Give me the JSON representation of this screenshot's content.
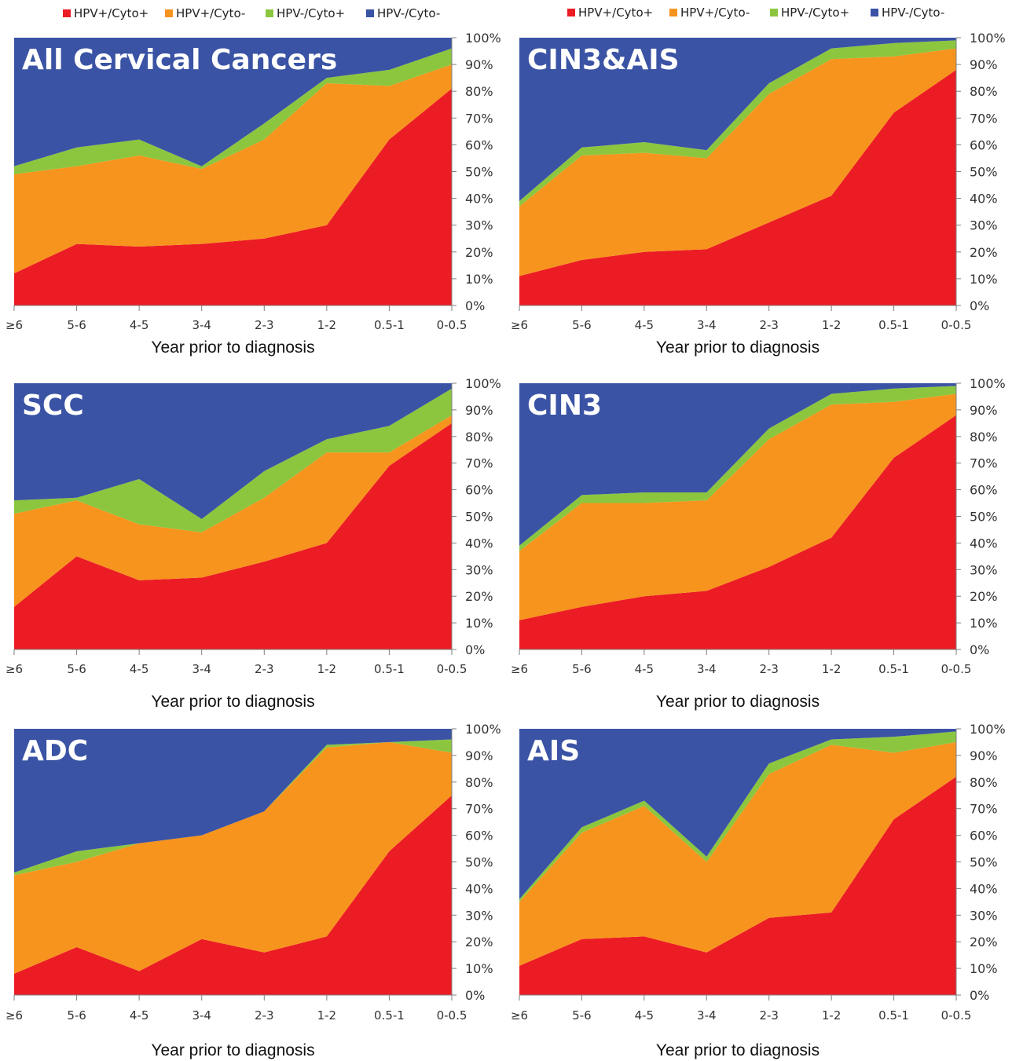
{
  "legend_labels": [
    "HPV+/Cyto+",
    "HPV+/Cyto-",
    "HPV-/Cyto+",
    "HPV-/Cyto-"
  ],
  "colors": {
    "HPV+/Cyto+": "#ec1c24",
    "HPV+/Cyto-": "#f7941d",
    "HPV-/Cyto+": "#8cc63f",
    "HPV-/Cyto-": "#3a53a4"
  },
  "chart_data": [
    {
      "type": "area",
      "stacked": true,
      "title": "All Cervical Cancers",
      "xlabel": "Year prior to diagnosis",
      "categories": [
        "≥6",
        "5-6",
        "4-5",
        "3-4",
        "2-3",
        "1-2",
        "0.5-1",
        "0-0.5"
      ],
      "yticks": [
        "0%",
        "10%",
        "20%",
        "30%",
        "40%",
        "50%",
        "60%",
        "70%",
        "80%",
        "90%",
        "100%"
      ],
      "ylim": [
        0,
        100
      ],
      "series": [
        {
          "name": "HPV+/Cyto+",
          "values": [
            12,
            23,
            22,
            23,
            25,
            30,
            62,
            81
          ]
        },
        {
          "name": "HPV+/Cyto-",
          "values": [
            37,
            29,
            34,
            28,
            37,
            53,
            20,
            9
          ]
        },
        {
          "name": "HPV-/Cyto+",
          "values": [
            3,
            7,
            6,
            1,
            6,
            2,
            6,
            6
          ]
        },
        {
          "name": "HPV-/Cyto-",
          "values": [
            48,
            41,
            38,
            48,
            32,
            15,
            12,
            4
          ]
        }
      ]
    },
    {
      "type": "area",
      "stacked": true,
      "title": "CIN3&AIS",
      "xlabel": "Year prior to diagnosis",
      "categories": [
        "≥6",
        "5-6",
        "4-5",
        "3-4",
        "2-3",
        "1-2",
        "0.5-1",
        "0-0.5"
      ],
      "yticks": [
        "0%",
        "10%",
        "20%",
        "30%",
        "40%",
        "50%",
        "60%",
        "70%",
        "80%",
        "90%",
        "100%"
      ],
      "ylim": [
        0,
        100
      ],
      "series": [
        {
          "name": "HPV+/Cyto+",
          "values": [
            11,
            17,
            20,
            21,
            31,
            41,
            72,
            88
          ]
        },
        {
          "name": "HPV+/Cyto-",
          "values": [
            26,
            39,
            37,
            34,
            48,
            51,
            21,
            8
          ]
        },
        {
          "name": "HPV-/Cyto+",
          "values": [
            2,
            3,
            4,
            3,
            4,
            4,
            5,
            3
          ]
        },
        {
          "name": "HPV-/Cyto-",
          "values": [
            61,
            41,
            39,
            42,
            17,
            4,
            2,
            1
          ]
        }
      ]
    },
    {
      "type": "area",
      "stacked": true,
      "title": "SCC",
      "xlabel": "Year prior to diagnosis",
      "categories": [
        "≥6",
        "5-6",
        "4-5",
        "3-4",
        "2-3",
        "1-2",
        "0.5-1",
        "0-0.5"
      ],
      "yticks": [
        "0%",
        "10%",
        "20%",
        "30%",
        "40%",
        "50%",
        "60%",
        "70%",
        "80%",
        "90%",
        "100%"
      ],
      "ylim": [
        0,
        100
      ],
      "series": [
        {
          "name": "HPV+/Cyto+",
          "values": [
            16,
            35,
            26,
            27,
            33,
            40,
            69,
            85
          ]
        },
        {
          "name": "HPV+/Cyto-",
          "values": [
            35,
            21,
            21,
            17,
            24,
            34,
            5,
            3
          ]
        },
        {
          "name": "HPV-/Cyto+",
          "values": [
            5,
            1,
            17,
            5,
            10,
            5,
            10,
            10
          ]
        },
        {
          "name": "HPV-/Cyto-",
          "values": [
            44,
            43,
            36,
            51,
            33,
            21,
            16,
            2
          ]
        }
      ]
    },
    {
      "type": "area",
      "stacked": true,
      "title": "CIN3",
      "xlabel": "Year prior to diagnosis",
      "categories": [
        "≥6",
        "5-6",
        "4-5",
        "3-4",
        "2-3",
        "1-2",
        "0.5-1",
        "0-0.5"
      ],
      "yticks": [
        "0%",
        "10%",
        "20%",
        "30%",
        "40%",
        "50%",
        "60%",
        "70%",
        "80%",
        "90%",
        "100%"
      ],
      "ylim": [
        0,
        100
      ],
      "series": [
        {
          "name": "HPV+/Cyto+",
          "values": [
            11,
            16,
            20,
            22,
            31,
            42,
            72,
            88
          ]
        },
        {
          "name": "HPV+/Cyto-",
          "values": [
            26,
            39,
            35,
            34,
            48,
            50,
            21,
            8
          ]
        },
        {
          "name": "HPV-/Cyto+",
          "values": [
            2,
            3,
            4,
            3,
            4,
            4,
            5,
            3
          ]
        },
        {
          "name": "HPV-/Cyto-",
          "values": [
            61,
            42,
            41,
            41,
            17,
            4,
            2,
            1
          ]
        }
      ]
    },
    {
      "type": "area",
      "stacked": true,
      "title": "ADC",
      "xlabel": "Year prior to diagnosis",
      "categories": [
        "≥6",
        "5-6",
        "4-5",
        "3-4",
        "2-3",
        "1-2",
        "0.5-1",
        "0-0.5"
      ],
      "yticks": [
        "0%",
        "10%",
        "20%",
        "30%",
        "40%",
        "50%",
        "60%",
        "70%",
        "80%",
        "90%",
        "100%"
      ],
      "ylim": [
        0,
        100
      ],
      "series": [
        {
          "name": "HPV+/Cyto+",
          "values": [
            8,
            18,
            9,
            21,
            16,
            22,
            54,
            75
          ]
        },
        {
          "name": "HPV+/Cyto-",
          "values": [
            37,
            32,
            48,
            39,
            53,
            71,
            41,
            16
          ]
        },
        {
          "name": "HPV-/Cyto+",
          "values": [
            1,
            4,
            0,
            0,
            0,
            1,
            0,
            5
          ]
        },
        {
          "name": "HPV-/Cyto-",
          "values": [
            54,
            46,
            43,
            40,
            31,
            6,
            5,
            4
          ]
        }
      ]
    },
    {
      "type": "area",
      "stacked": true,
      "title": "AIS",
      "xlabel": "Year prior to diagnosis",
      "categories": [
        "≥6",
        "5-6",
        "4-5",
        "3-4",
        "2-3",
        "1-2",
        "0.5-1",
        "0-0.5"
      ],
      "yticks": [
        "0%",
        "10%",
        "20%",
        "30%",
        "40%",
        "50%",
        "60%",
        "70%",
        "80%",
        "90%",
        "100%"
      ],
      "ylim": [
        0,
        100
      ],
      "series": [
        {
          "name": "HPV+/Cyto+",
          "values": [
            11,
            21,
            22,
            16,
            29,
            31,
            66,
            82
          ]
        },
        {
          "name": "HPV+/Cyto-",
          "values": [
            24,
            40,
            49,
            34,
            54,
            63,
            25,
            13
          ]
        },
        {
          "name": "HPV-/Cyto+",
          "values": [
            1,
            2,
            2,
            2,
            4,
            2,
            6,
            4
          ]
        },
        {
          "name": "HPV-/Cyto-",
          "values": [
            64,
            37,
            27,
            48,
            13,
            4,
            3,
            1
          ]
        }
      ]
    }
  ]
}
